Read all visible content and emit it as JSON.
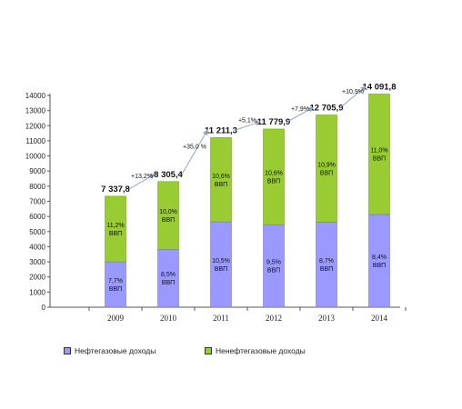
{
  "colors": {
    "oil_gas": "#9999ff",
    "non_oil_gas": "#99cc33",
    "arrow": "#8da3c8",
    "axis": "#555555"
  },
  "chart_data": {
    "type": "bar",
    "stacked": true,
    "categories": [
      "2009",
      "2010",
      "2011",
      "2012",
      "2013",
      "2014"
    ],
    "series": [
      {
        "name": "Нефтегазовые доходы",
        "values": [
          2997,
          3830,
          5642,
          5453,
          5620,
          6130
        ],
        "labels": [
          "7,7%\nВВП",
          "8,5%\nВВП",
          "10,5%\nВВП",
          "9,5%\nВВП",
          "8,7%\nВВП",
          "8,4%\nВВП"
        ]
      },
      {
        "name": "Ненефтегазовые доходы",
        "values": [
          4340.8,
          4475.4,
          5569.3,
          6326.9,
          7085.9,
          7961.8
        ],
        "labels": [
          "11,2%\nВВП",
          "10,0%\nВВП",
          "10,6%\nВВП",
          "10,6%\nВВП",
          "10,9%\nВВП",
          "11,0%\nВВП"
        ]
      }
    ],
    "totals": [
      "7 337,8",
      "8 305,4",
      "11 211,3",
      "11 779,9",
      "12 705,9",
      "14 091,8"
    ],
    "growth": [
      "+13,2%",
      "+35,0 %",
      "+5,1%",
      "+7,9%",
      "+10,9%"
    ],
    "ylim": [
      0,
      14000
    ],
    "yticks": [
      "0",
      "1000",
      "2000",
      "3000",
      "4000",
      "5000",
      "6000",
      "7000",
      "8000",
      "9000",
      "10000",
      "11000",
      "12000",
      "13000",
      "14000"
    ],
    "legend_position": "bottom",
    "grid": false
  },
  "legend": {
    "items": [
      {
        "label": "Нефтегазовые доходы",
        "color": "#9999ff"
      },
      {
        "label": "Ненефтегазовые доходы",
        "color": "#99cc33"
      }
    ]
  }
}
